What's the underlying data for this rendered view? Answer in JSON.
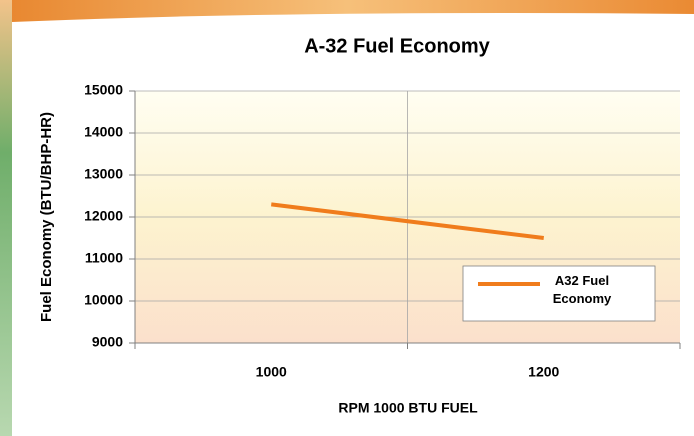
{
  "chart_data": {
    "type": "line",
    "title": "A-32 Fuel Economy",
    "x_label": "RPM 1000 BTU FUEL",
    "y_label": "Fuel Economy (BTU/BHP-HR)",
    "categories": [
      "1000",
      "1200"
    ],
    "series": [
      {
        "name": "A32 Fuel Economy",
        "color": "#f07c1c",
        "values": [
          12300,
          11500
        ]
      }
    ],
    "ylim": [
      9000,
      15000
    ],
    "yticks": [
      9000,
      10000,
      11000,
      12000,
      13000,
      14000,
      15000
    ],
    "grid": true,
    "legend": "lower right"
  }
}
